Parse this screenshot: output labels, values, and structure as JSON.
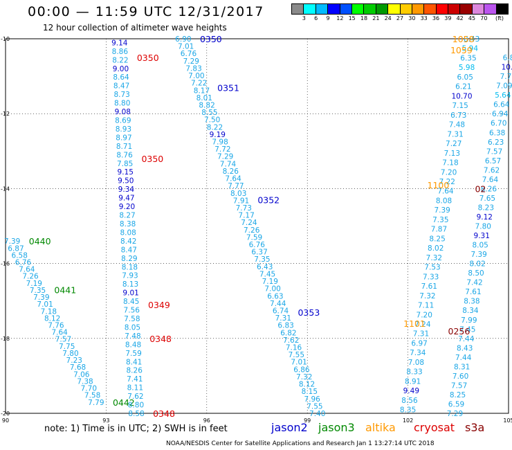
{
  "header": {
    "title": "00:00 — 11:59 UTC 12/31/2017",
    "subtitle": "12 hour collection of altimeter wave heights"
  },
  "colorbar": {
    "colors": [
      "#8a8a8a",
      "#00ffff",
      "#00bbff",
      "#0000ff",
      "#0050ff",
      "#00ff00",
      "#00cc00",
      "#009900",
      "#ffff00",
      "#ffcc00",
      "#ff9900",
      "#ff5500",
      "#ff0000",
      "#cc0000",
      "#990000",
      "#dd88dd",
      "#bb55ee",
      "#000000"
    ],
    "ticks": [
      "3",
      "6",
      "9",
      "12",
      "15",
      "18",
      "21",
      "24",
      "27",
      "30",
      "33",
      "36",
      "39",
      "42",
      "45",
      "70"
    ],
    "unit": "(ft)"
  },
  "footer": {
    "note": "note: 1) Time is in UTC; 2) SWH is in feet",
    "legend": [
      {
        "name": "jason2",
        "color": "#0000cc"
      },
      {
        "name": "jason3",
        "color": "#008800"
      },
      {
        "name": "altika",
        "color": "#ff9900"
      },
      {
        "name": "cryosat",
        "color": "#dd0000"
      },
      {
        "name": "s3a",
        "color": "#880000"
      }
    ],
    "credit": "NOAA/NESDIS Center for Satellite Applications and Research   Jan  1 13:27:14 UTC 2018"
  },
  "chart_data": {
    "type": "scatter",
    "xlim": [
      90,
      105
    ],
    "ylim": [
      -20,
      -10
    ],
    "x_ticks": [
      "90",
      "93",
      "96",
      "99",
      "102",
      "105"
    ],
    "y_ticks": [
      "-10",
      "-12",
      "-14",
      "-16",
      "-18",
      "-20"
    ],
    "grid": true,
    "tracks": [
      {
        "satellite": "jason3",
        "lon0": 90.2,
        "lat0": -15.4,
        "lon1": 92.7,
        "lat1": -19.7,
        "values": [
          "7.39",
          "6.87",
          "6.58",
          "6.76",
          "7.64",
          "7.26",
          "7.19",
          "7.35",
          "7.39",
          "7.01",
          "7.18",
          "8.12",
          "7.76",
          "7.64",
          "7.57",
          "7.75",
          "7.80",
          "7.23",
          "7.68",
          "7.06",
          "7.38",
          "7.70",
          "7.58",
          "7.79"
        ],
        "times": [
          {
            "label": "0440",
            "lat": -15.4
          },
          {
            "label": "0441",
            "lat": -16.7
          },
          {
            "label": "0442",
            "lat": -19.7
          }
        ]
      },
      {
        "satellite": "cryosat",
        "lon0": 93.4,
        "lat0": -10.1,
        "lon1": 93.9,
        "lat1": -20.0,
        "values": [
          "9.14",
          "8.86",
          "8.22",
          "9.00",
          "8.64",
          "8.47",
          "8.73",
          "8.80",
          "9.08",
          "8.69",
          "8.93",
          "8.97",
          "8.71",
          "8.76",
          "7.85",
          "9.15",
          "9.50",
          "9.34",
          "9.47",
          "9.20",
          "8.27",
          "8.38",
          "8.08",
          "8.42",
          "8.47",
          "8.29",
          "8.18",
          "7.93",
          "8.13",
          "9.01",
          "8.45",
          "7.56",
          "7.58",
          "8.05",
          "7.48",
          "8.48",
          "7.59",
          "8.41",
          "8.26",
          "7.41",
          "8.11",
          "7.62",
          "8.80",
          "8.58"
        ],
        "times": [
          {
            "label": "0350",
            "lat": -10.5
          },
          {
            "label": "0350",
            "lat": -13.2
          },
          {
            "label": "0349",
            "lat": -17.1
          },
          {
            "label": "0348",
            "lat": -18.0
          },
          {
            "label": "0348",
            "lat": -20.0
          }
        ]
      },
      {
        "satellite": "jason2",
        "lon0": 95.3,
        "lat0": -10.0,
        "lon1": 99.3,
        "lat1": -20.0,
        "values": [
          "6.90",
          "7.01",
          "6.76",
          "7.29",
          "7.83",
          "7.00",
          "7.22",
          "8.17",
          "8.01",
          "8.82",
          "8.55",
          "7.50",
          "8.22",
          "9.19",
          "7.98",
          "7.72",
          "7.29",
          "7.74",
          "8.26",
          "7.64",
          "7.77",
          "8.03",
          "7.91",
          "7.73",
          "7.17",
          "7.24",
          "7.26",
          "7.59",
          "6.76",
          "6.37",
          "7.35",
          "6.43",
          "7.45",
          "7.19",
          "7.00",
          "6.63",
          "7.44",
          "6.74",
          "7.31",
          "6.83",
          "6.82",
          "7.62",
          "7.16",
          "7.55",
          "7.01",
          "6.86",
          "7.32",
          "8.12",
          "8.15",
          "7.96",
          "7.55",
          "7.40"
        ],
        "times": [
          {
            "label": "0350",
            "lat": -10.0
          },
          {
            "label": "0351",
            "lat": -11.3
          },
          {
            "label": "0352",
            "lat": -14.3
          },
          {
            "label": "0353",
            "lat": -17.3
          }
        ]
      },
      {
        "satellite": "altika",
        "lon0": 103.9,
        "lat0": -10.0,
        "lon1": 102.0,
        "lat1": -19.9,
        "values": [
          "8.43",
          "5.94",
          "6.35",
          "5.98",
          "6.05",
          "6.21",
          "10.70",
          "7.15",
          "6.73",
          "7.48",
          "7.31",
          "7.27",
          "7.13",
          "7.18",
          "7.20",
          "7.22",
          "7.64",
          "8.08",
          "7.39",
          "7.35",
          "7.87",
          "8.25",
          "8.02",
          "7.32",
          "7.53",
          "7.33",
          "7.61",
          "7.32",
          "7.11",
          "7.20",
          "7.24",
          "7.31",
          "6.97",
          "7.34",
          "7.08",
          "8.33",
          "8.91",
          "9.49",
          "8.56",
          "8.35"
        ],
        "times": [
          {
            "label": "1058",
            "lat": -10.0
          },
          {
            "label": "1059",
            "lat": -10.3
          },
          {
            "label": "1100",
            "lat": -13.9
          },
          {
            "label": "1101",
            "lat": -17.6
          }
        ]
      },
      {
        "satellite": "s3a",
        "lon0": 105.0,
        "lat0": -10.5,
        "lon1": 103.4,
        "lat1": -20.0,
        "values": [
          "6.8",
          "10.",
          "7.7",
          "7.09",
          "5.64",
          "6.64",
          "6.94",
          "6.70",
          "6.38",
          "6.23",
          "7.57",
          "6.57",
          "7.62",
          "7.64",
          "8.26",
          "7.65",
          "8.23",
          "9.12",
          "7.80",
          "9.31",
          "8.05",
          "7.39",
          "8.02",
          "8.50",
          "7.42",
          "7.61",
          "8.38",
          "8.34",
          "7.99",
          "7.45",
          "7.44",
          "8.43",
          "7.44",
          "8.31",
          "7.60",
          "7.57",
          "8.25",
          "6.59",
          "7.29"
        ],
        "times": [
          {
            "label": "02",
            "lat": -14.0
          },
          {
            "label": "0256",
            "lat": -17.8
          }
        ]
      }
    ]
  }
}
